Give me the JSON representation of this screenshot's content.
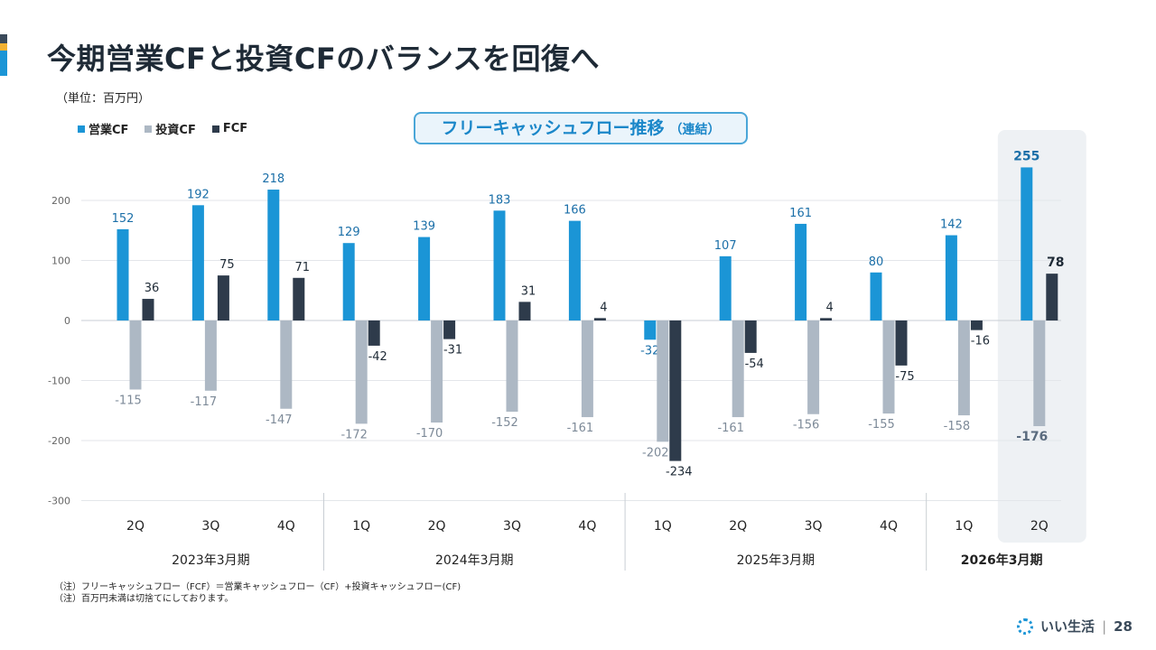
{
  "slide": {
    "title": "今期営業CFと投資CFのバランスを回復へ",
    "unit": "（単位：百万円）",
    "chart_box_title": "フリーキャッシュフロー推移",
    "chart_box_subtitle": "（連結）",
    "notes": [
      "（注）フリーキャッシュフロー（FCF）＝営業キャッシュフロー（CF）+投資キャッシュフロー(CF)",
      "（注）百万円未満は切捨てにしております。"
    ],
    "brand": "いい生活",
    "page_number": "28"
  },
  "colors": {
    "operating": "#1b95d6",
    "investing": "#adb8c4",
    "fcf": "#2e3b4b",
    "highlight_bg": "#eef1f4",
    "grid": "#e3e6ea"
  },
  "chart_data": {
    "type": "bar",
    "title": "フリーキャッシュフロー推移（連結）",
    "ylabel": "百万円",
    "ylim": [
      -300,
      250
    ],
    "yticks": [
      200,
      100,
      0,
      -100,
      -200,
      -300
    ],
    "legend": [
      "営業CF",
      "投資CF",
      "FCF"
    ],
    "categories": [
      "2Q",
      "3Q",
      "4Q",
      "1Q",
      "2Q",
      "3Q",
      "4Q",
      "1Q",
      "2Q",
      "3Q",
      "4Q",
      "1Q",
      "2Q"
    ],
    "series": [
      {
        "name": "営業CF",
        "values": [
          152,
          192,
          218,
          129,
          139,
          183,
          166,
          -32,
          107,
          161,
          80,
          142,
          255
        ]
      },
      {
        "name": "投資CF",
        "values": [
          -115,
          -117,
          -147,
          -172,
          -170,
          -152,
          -161,
          -202,
          -161,
          -156,
          -155,
          -158,
          -176
        ]
      },
      {
        "name": "FCF",
        "values": [
          36,
          75,
          71,
          -42,
          -31,
          31,
          4,
          -234,
          -54,
          4,
          -75,
          -16,
          78
        ]
      }
    ],
    "fiscal_years": [
      {
        "label": "2023年3月期",
        "count": 3,
        "bold": false
      },
      {
        "label": "2024年3月期",
        "count": 4,
        "bold": false
      },
      {
        "label": "2025年3月期",
        "count": 4,
        "bold": false
      },
      {
        "label": "2026年3月期",
        "count": 2,
        "bold": true
      }
    ],
    "highlight_index": 12
  }
}
